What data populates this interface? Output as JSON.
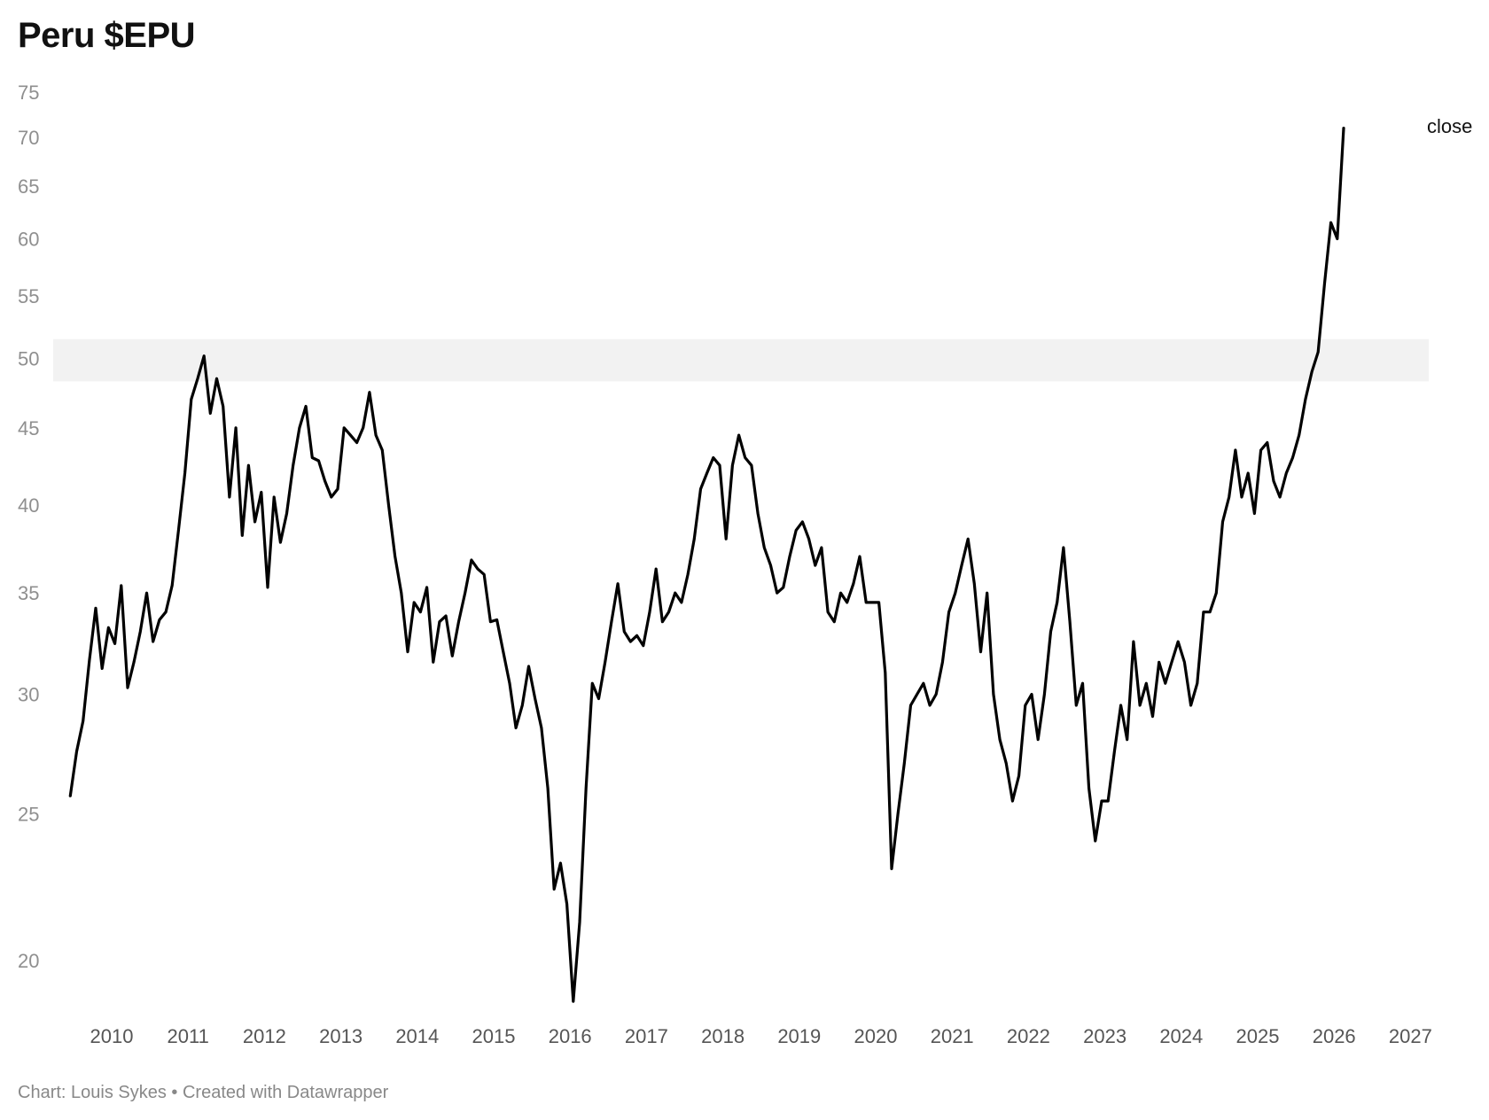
{
  "title": "Peru $EPU",
  "footer": "Chart: Louis Sykes • Created with Datawrapper",
  "chart_data": {
    "type": "line",
    "title": "Peru $EPU",
    "yscale": "log",
    "ylim": [
      18.5,
      75
    ],
    "yticks": [
      20,
      25,
      30,
      35,
      40,
      45,
      50,
      55,
      60,
      65,
      70,
      75
    ],
    "xlim": [
      2009.5,
      2027.25
    ],
    "xticks": [
      "2010",
      "2011",
      "2012",
      "2013",
      "2014",
      "2015",
      "2016",
      "2017",
      "2018",
      "2019",
      "2020",
      "2021",
      "2022",
      "2023",
      "2024",
      "2025",
      "2026",
      "2027"
    ],
    "highlight_band": {
      "y_from": 48.3,
      "y_to": 51.5,
      "color": "#f2f2f2"
    },
    "grid": false,
    "series": [
      {
        "label": "close",
        "color": "#000000",
        "points": [
          [
            "2009-06",
            25.7
          ],
          [
            "2009-07",
            27.5
          ],
          [
            "2009-08",
            28.8
          ],
          [
            "2009-09",
            31.6
          ],
          [
            "2009-10",
            34.2
          ],
          [
            "2009-11",
            31.2
          ],
          [
            "2009-12",
            33.2
          ],
          [
            "2010-01",
            32.4
          ],
          [
            "2010-02",
            35.4
          ],
          [
            "2010-03",
            30.3
          ],
          [
            "2010-04",
            31.5
          ],
          [
            "2010-05",
            33.0
          ],
          [
            "2010-06",
            35.0
          ],
          [
            "2010-07",
            32.5
          ],
          [
            "2010-08",
            33.6
          ],
          [
            "2010-09",
            34.0
          ],
          [
            "2010-10",
            35.4
          ],
          [
            "2010-11",
            38.5
          ],
          [
            "2010-12",
            42.0
          ],
          [
            "2011-01",
            47.0
          ],
          [
            "2011-02",
            48.5
          ],
          [
            "2011-03",
            50.2
          ],
          [
            "2011-04",
            46.0
          ],
          [
            "2011-05",
            48.5
          ],
          [
            "2011-06",
            46.5
          ],
          [
            "2011-07",
            40.5
          ],
          [
            "2011-08",
            45.0
          ],
          [
            "2011-09",
            38.2
          ],
          [
            "2011-10",
            42.5
          ],
          [
            "2011-11",
            39.0
          ],
          [
            "2011-12",
            40.8
          ],
          [
            "2012-01",
            35.3
          ],
          [
            "2012-02",
            40.5
          ],
          [
            "2012-03",
            37.8
          ],
          [
            "2012-04",
            39.5
          ],
          [
            "2012-05",
            42.5
          ],
          [
            "2012-06",
            45.0
          ],
          [
            "2012-07",
            46.5
          ],
          [
            "2012-08",
            43.0
          ],
          [
            "2012-09",
            42.8
          ],
          [
            "2012-10",
            41.5
          ],
          [
            "2012-11",
            40.5
          ],
          [
            "2012-12",
            41.0
          ],
          [
            "2013-01",
            45.0
          ],
          [
            "2013-02",
            44.5
          ],
          [
            "2013-03",
            44.0
          ],
          [
            "2013-04",
            45.0
          ],
          [
            "2013-05",
            47.5
          ],
          [
            "2013-06",
            44.5
          ],
          [
            "2013-07",
            43.5
          ],
          [
            "2013-08",
            40.0
          ],
          [
            "2013-09",
            37.0
          ],
          [
            "2013-10",
            35.0
          ],
          [
            "2013-11",
            32.0
          ],
          [
            "2013-12",
            34.5
          ],
          [
            "2014-01",
            34.0
          ],
          [
            "2014-02",
            35.3
          ],
          [
            "2014-03",
            31.5
          ],
          [
            "2014-04",
            33.5
          ],
          [
            "2014-05",
            33.8
          ],
          [
            "2014-06",
            31.8
          ],
          [
            "2014-07",
            33.5
          ],
          [
            "2014-08",
            35.0
          ],
          [
            "2014-09",
            36.8
          ],
          [
            "2014-10",
            36.3
          ],
          [
            "2014-11",
            36.0
          ],
          [
            "2014-12",
            33.5
          ],
          [
            "2015-01",
            33.6
          ],
          [
            "2015-02",
            32.0
          ],
          [
            "2015-03",
            30.5
          ],
          [
            "2015-04",
            28.5
          ],
          [
            "2015-05",
            29.5
          ],
          [
            "2015-06",
            31.3
          ],
          [
            "2015-07",
            29.8
          ],
          [
            "2015-08",
            28.5
          ],
          [
            "2015-09",
            26.0
          ],
          [
            "2015-10",
            22.3
          ],
          [
            "2015-11",
            23.2
          ],
          [
            "2015-12",
            21.8
          ],
          [
            "2016-01",
            18.8
          ],
          [
            "2016-02",
            21.2
          ],
          [
            "2016-03",
            26.0
          ],
          [
            "2016-04",
            30.5
          ],
          [
            "2016-05",
            29.8
          ],
          [
            "2016-06",
            31.5
          ],
          [
            "2016-07",
            33.5
          ],
          [
            "2016-08",
            35.5
          ],
          [
            "2016-09",
            33.0
          ],
          [
            "2016-10",
            32.5
          ],
          [
            "2016-11",
            32.8
          ],
          [
            "2016-12",
            32.3
          ],
          [
            "2017-01",
            34.0
          ],
          [
            "2017-02",
            36.3
          ],
          [
            "2017-03",
            33.5
          ],
          [
            "2017-04",
            34.0
          ],
          [
            "2017-05",
            35.0
          ],
          [
            "2017-06",
            34.5
          ],
          [
            "2017-07",
            36.0
          ],
          [
            "2017-08",
            38.0
          ],
          [
            "2017-09",
            41.0
          ],
          [
            "2017-10",
            42.0
          ],
          [
            "2017-11",
            43.0
          ],
          [
            "2017-12",
            42.5
          ],
          [
            "2018-01",
            38.0
          ],
          [
            "2018-02",
            42.5
          ],
          [
            "2018-03",
            44.5
          ],
          [
            "2018-04",
            43.0
          ],
          [
            "2018-05",
            42.5
          ],
          [
            "2018-06",
            39.5
          ],
          [
            "2018-07",
            37.5
          ],
          [
            "2018-08",
            36.5
          ],
          [
            "2018-09",
            35.0
          ],
          [
            "2018-10",
            35.3
          ],
          [
            "2018-11",
            37.0
          ],
          [
            "2018-12",
            38.5
          ],
          [
            "2019-01",
            39.0
          ],
          [
            "2019-02",
            38.0
          ],
          [
            "2019-03",
            36.5
          ],
          [
            "2019-04",
            37.5
          ],
          [
            "2019-05",
            34.0
          ],
          [
            "2019-06",
            33.5
          ],
          [
            "2019-07",
            35.0
          ],
          [
            "2019-08",
            34.5
          ],
          [
            "2019-09",
            35.5
          ],
          [
            "2019-10",
            37.0
          ],
          [
            "2019-11",
            34.5
          ],
          [
            "2019-12",
            34.5
          ],
          [
            "2020-01",
            34.5
          ],
          [
            "2020-02",
            31.0
          ],
          [
            "2020-03",
            23.0
          ],
          [
            "2020-04",
            25.0
          ],
          [
            "2020-05",
            27.0
          ],
          [
            "2020-06",
            29.5
          ],
          [
            "2020-07",
            30.0
          ],
          [
            "2020-08",
            30.5
          ],
          [
            "2020-09",
            29.5
          ],
          [
            "2020-10",
            30.0
          ],
          [
            "2020-11",
            31.5
          ],
          [
            "2020-12",
            34.0
          ],
          [
            "2021-01",
            35.0
          ],
          [
            "2021-02",
            36.5
          ],
          [
            "2021-03",
            38.0
          ],
          [
            "2021-04",
            35.5
          ],
          [
            "2021-05",
            32.0
          ],
          [
            "2021-06",
            35.0
          ],
          [
            "2021-07",
            30.0
          ],
          [
            "2021-08",
            28.0
          ],
          [
            "2021-09",
            27.0
          ],
          [
            "2021-10",
            25.5
          ],
          [
            "2021-11",
            26.5
          ],
          [
            "2021-12",
            29.5
          ],
          [
            "2022-01",
            30.0
          ],
          [
            "2022-02",
            28.0
          ],
          [
            "2022-03",
            30.0
          ],
          [
            "2022-04",
            33.0
          ],
          [
            "2022-05",
            34.5
          ],
          [
            "2022-06",
            37.5
          ],
          [
            "2022-07",
            33.5
          ],
          [
            "2022-08",
            29.5
          ],
          [
            "2022-09",
            30.5
          ],
          [
            "2022-10",
            26.0
          ],
          [
            "2022-11",
            24.0
          ],
          [
            "2022-12",
            25.5
          ],
          [
            "2023-01",
            25.5
          ],
          [
            "2023-02",
            27.5
          ],
          [
            "2023-03",
            29.5
          ],
          [
            "2023-04",
            28.0
          ],
          [
            "2023-05",
            32.5
          ],
          [
            "2023-06",
            29.5
          ],
          [
            "2023-07",
            30.5
          ],
          [
            "2023-08",
            29.0
          ],
          [
            "2023-09",
            31.5
          ],
          [
            "2023-10",
            30.5
          ],
          [
            "2023-11",
            31.5
          ],
          [
            "2023-12",
            32.5
          ],
          [
            "2024-01",
            31.5
          ],
          [
            "2024-02",
            29.5
          ],
          [
            "2024-03",
            30.5
          ],
          [
            "2024-04",
            34.0
          ],
          [
            "2024-05",
            34.0
          ],
          [
            "2024-06",
            35.0
          ],
          [
            "2024-07",
            39.0
          ],
          [
            "2024-08",
            40.5
          ],
          [
            "2024-09",
            43.5
          ],
          [
            "2024-10",
            40.5
          ],
          [
            "2024-11",
            42.0
          ],
          [
            "2024-12",
            39.5
          ],
          [
            "2025-01",
            43.5
          ],
          [
            "2025-02",
            44.0
          ],
          [
            "2025-03",
            41.5
          ],
          [
            "2025-04",
            40.5
          ],
          [
            "2025-05",
            42.0
          ],
          [
            "2025-06",
            43.0
          ],
          [
            "2025-07",
            44.5
          ],
          [
            "2025-08",
            47.0
          ],
          [
            "2025-09",
            49.0
          ],
          [
            "2025-10",
            50.5
          ],
          [
            "2025-11",
            56.0
          ],
          [
            "2025-12",
            61.5
          ],
          [
            "2026-01",
            60.0
          ],
          [
            "2026-02",
            71.0
          ]
        ]
      }
    ]
  }
}
